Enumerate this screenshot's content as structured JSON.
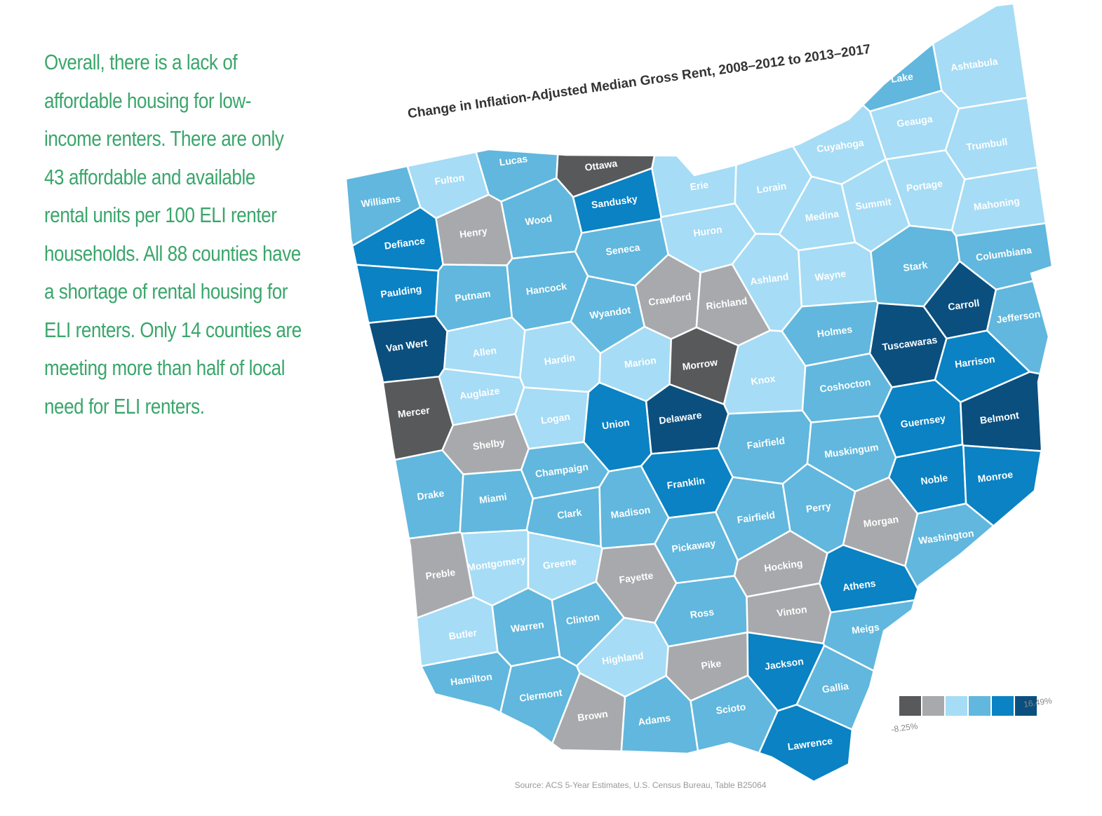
{
  "body_text": {
    "lines": [
      "Overall, there is a lack of",
      "affordable housing for low-",
      "income renters. There are only",
      "43 affordable and available",
      "rental units per 100 ELI renter",
      "households. All 88 counties have",
      "a shortage of rental housing for",
      "ELI renters. Only 14 counties are",
      "meeting more than half of local",
      "need for ELI renters."
    ]
  },
  "map": {
    "title": "Change in Inflation-Adjusted Median Gross Rent, 2008–2012 to 2013–2017",
    "source": "Source: ACS 5-Year Estimates, U.S. Census Bureau, Table B25064",
    "legend": {
      "colors": [
        "#58595b",
        "#a7a9ac",
        "#a6dcf5",
        "#61b7dd",
        "#0a82c3",
        "#0b4f7e"
      ],
      "min_label": "-8.25%",
      "max_label": "16.49%"
    },
    "counties": [
      {
        "name": "Williams",
        "color": "#61b7dd"
      },
      {
        "name": "Fulton",
        "color": "#a6dcf5"
      },
      {
        "name": "Lucas",
        "color": "#61b7dd"
      },
      {
        "name": "Ottawa",
        "color": "#58595b"
      },
      {
        "name": "Wood",
        "color": "#61b7dd"
      },
      {
        "name": "Sandusky",
        "color": "#0a82c3"
      },
      {
        "name": "Erie",
        "color": "#a6dcf5"
      },
      {
        "name": "Lorain",
        "color": "#a6dcf5"
      },
      {
        "name": "Cuyahoga",
        "color": "#a6dcf5"
      },
      {
        "name": "Lake",
        "color": "#61b7dd"
      },
      {
        "name": "Ashtabula",
        "color": "#a6dcf5"
      },
      {
        "name": "Geauga",
        "color": "#a6dcf5"
      },
      {
        "name": "Trumbull",
        "color": "#a6dcf5"
      },
      {
        "name": "Portage",
        "color": "#a6dcf5"
      },
      {
        "name": "Summit",
        "color": "#a6dcf5"
      },
      {
        "name": "Medina",
        "color": "#a6dcf5"
      },
      {
        "name": "Mahoning",
        "color": "#a6dcf5"
      },
      {
        "name": "Defiance",
        "color": "#0a82c3"
      },
      {
        "name": "Henry",
        "color": "#a7a9ac"
      },
      {
        "name": "Huron",
        "color": "#a6dcf5"
      },
      {
        "name": "Seneca",
        "color": "#61b7dd"
      },
      {
        "name": "Ashland",
        "color": "#a6dcf5"
      },
      {
        "name": "Wayne",
        "color": "#a6dcf5"
      },
      {
        "name": "Stark",
        "color": "#61b7dd"
      },
      {
        "name": "Columbiana",
        "color": "#61b7dd"
      },
      {
        "name": "Paulding",
        "color": "#0a82c3"
      },
      {
        "name": "Putnam",
        "color": "#61b7dd"
      },
      {
        "name": "Hancock",
        "color": "#61b7dd"
      },
      {
        "name": "Wyandot",
        "color": "#61b7dd"
      },
      {
        "name": "Crawford",
        "color": "#a7a9ac"
      },
      {
        "name": "Richland",
        "color": "#a7a9ac"
      },
      {
        "name": "Holmes",
        "color": "#61b7dd"
      },
      {
        "name": "Carroll",
        "color": "#0b4f7e"
      },
      {
        "name": "Jefferson",
        "color": "#61b7dd"
      },
      {
        "name": "Van Wert",
        "color": "#0b4f7e"
      },
      {
        "name": "Allen",
        "color": "#a6dcf5"
      },
      {
        "name": "Hardin",
        "color": "#a6dcf5"
      },
      {
        "name": "Marion",
        "color": "#a6dcf5"
      },
      {
        "name": "Morrow",
        "color": "#58595b"
      },
      {
        "name": "Knox",
        "color": "#a6dcf5"
      },
      {
        "name": "Coshocton",
        "color": "#61b7dd"
      },
      {
        "name": "Tuscawaras",
        "color": "#0b4f7e"
      },
      {
        "name": "Harrison",
        "color": "#0a82c3"
      },
      {
        "name": "Mercer",
        "color": "#58595b"
      },
      {
        "name": "Auglaize",
        "color": "#a6dcf5"
      },
      {
        "name": "Logan",
        "color": "#a6dcf5"
      },
      {
        "name": "Union",
        "color": "#0a82c3"
      },
      {
        "name": "Delaware",
        "color": "#0b4f7e"
      },
      {
        "name": "Fairfield",
        "color": "#61b7dd"
      },
      {
        "name": "Muskingum",
        "color": "#61b7dd"
      },
      {
        "name": "Guernsey",
        "color": "#0a82c3"
      },
      {
        "name": "Belmont",
        "color": "#0b4f7e"
      },
      {
        "name": "Shelby",
        "color": "#a7a9ac"
      },
      {
        "name": "Champaign",
        "color": "#61b7dd"
      },
      {
        "name": "Franklin",
        "color": "#0a82c3"
      },
      {
        "name": "Noble",
        "color": "#0a82c3"
      },
      {
        "name": "Monroe",
        "color": "#0a82c3"
      },
      {
        "name": "Drake",
        "color": "#61b7dd"
      },
      {
        "name": "Miami",
        "color": "#61b7dd"
      },
      {
        "name": "Clark",
        "color": "#61b7dd"
      },
      {
        "name": "Madison",
        "color": "#61b7dd"
      },
      {
        "name": "Fairfield",
        "color": "#61b7dd"
      },
      {
        "name": "Perry",
        "color": "#61b7dd"
      },
      {
        "name": "Morgan",
        "color": "#a7a9ac"
      },
      {
        "name": "Washington",
        "color": "#61b7dd"
      },
      {
        "name": "Pickaway",
        "color": "#61b7dd"
      },
      {
        "name": "Preble",
        "color": "#a7a9ac"
      },
      {
        "name": "Montgomery",
        "color": "#a6dcf5"
      },
      {
        "name": "Greene",
        "color": "#a6dcf5"
      },
      {
        "name": "Fayette",
        "color": "#a7a9ac"
      },
      {
        "name": "Hocking",
        "color": "#a7a9ac"
      },
      {
        "name": "Athens",
        "color": "#0a82c3"
      },
      {
        "name": "Ross",
        "color": "#61b7dd"
      },
      {
        "name": "Vinton",
        "color": "#a7a9ac"
      },
      {
        "name": "Meigs",
        "color": "#61b7dd"
      },
      {
        "name": "Butler",
        "color": "#a6dcf5"
      },
      {
        "name": "Warren",
        "color": "#61b7dd"
      },
      {
        "name": "Clinton",
        "color": "#61b7dd"
      },
      {
        "name": "Highland",
        "color": "#a6dcf5"
      },
      {
        "name": "Pike",
        "color": "#a7a9ac"
      },
      {
        "name": "Jackson",
        "color": "#0a82c3"
      },
      {
        "name": "Gallia",
        "color": "#61b7dd"
      },
      {
        "name": "Hamilton",
        "color": "#61b7dd"
      },
      {
        "name": "Clermont",
        "color": "#61b7dd"
      },
      {
        "name": "Brown",
        "color": "#a7a9ac"
      },
      {
        "name": "Adams",
        "color": "#61b7dd"
      },
      {
        "name": "Scioto",
        "color": "#61b7dd"
      },
      {
        "name": "Lawrence",
        "color": "#0a82c3"
      }
    ]
  }
}
